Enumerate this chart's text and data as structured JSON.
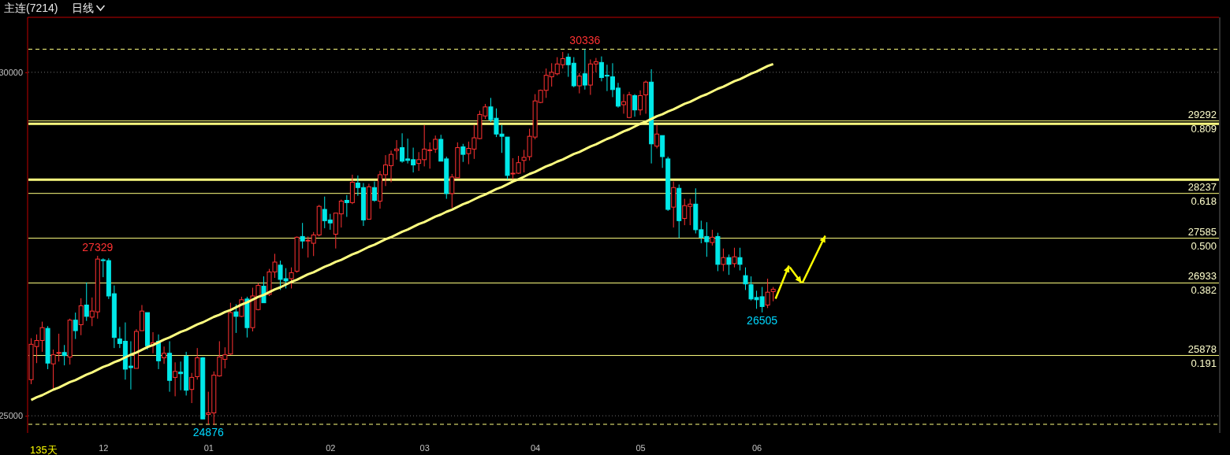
{
  "chart_data": {
    "type": "candlestick",
    "title": "主连(7214)",
    "subtitle": "日线",
    "categories": [
      null,
      null,
      null,
      null,
      null,
      null,
      null,
      null,
      null,
      null,
      null,
      null,
      null,
      "12",
      null,
      null,
      null,
      null,
      null,
      null,
      null,
      null,
      null,
      null,
      null,
      null,
      null,
      null,
      null,
      null,
      null,
      null,
      "01",
      null,
      null,
      null,
      null,
      null,
      null,
      null,
      null,
      null,
      null,
      null,
      null,
      null,
      null,
      null,
      null,
      null,
      null,
      null,
      null,
      null,
      "02",
      null,
      null,
      null,
      null,
      null,
      null,
      null,
      null,
      null,
      null,
      null,
      null,
      null,
      null,
      null,
      null,
      "03",
      null,
      null,
      null,
      null,
      null,
      null,
      null,
      null,
      null,
      null,
      null,
      null,
      null,
      null,
      null,
      null,
      null,
      null,
      null,
      "04",
      null,
      null,
      null,
      null,
      null,
      null,
      null,
      null,
      null,
      null,
      null,
      null,
      null,
      null,
      null,
      null,
      null,
      null,
      "05",
      null,
      null,
      null,
      null,
      null,
      null,
      null,
      null,
      null,
      null,
      null,
      null,
      null,
      null,
      null,
      null,
      null,
      null,
      null,
      null,
      "06",
      null,
      null,
      null
    ],
    "ohlc": [
      [
        25526,
        26129,
        25460,
        26041
      ],
      [
        26008,
        26184,
        25767,
        26096
      ],
      [
        26096,
        26370,
        25931,
        26283
      ],
      [
        26272,
        26305,
        25679,
        25767
      ],
      [
        25756,
        25964,
        25394,
        25888
      ],
      [
        25910,
        26195,
        25789,
        25921
      ],
      [
        25921,
        26030,
        25734,
        25877
      ],
      [
        25855,
        26414,
        25745,
        26392
      ],
      [
        26392,
        26502,
        26118,
        26239
      ],
      [
        26326,
        26711,
        26173,
        26601
      ],
      [
        26612,
        26941,
        26381,
        26447
      ],
      [
        26436,
        26722,
        26305,
        26524
      ],
      [
        26513,
        27329,
        26414,
        27281
      ],
      [
        27270,
        27292,
        27018,
        27259
      ],
      [
        27259,
        27292,
        26700,
        26744
      ],
      [
        26777,
        26897,
        25986,
        26140
      ],
      [
        26118,
        26294,
        25986,
        26052
      ],
      [
        26085,
        26359,
        25526,
        25679
      ],
      [
        25723,
        26085,
        25383,
        25701
      ],
      [
        25690,
        26261,
        25690,
        26228
      ],
      [
        26239,
        26612,
        26239,
        26524
      ],
      [
        26502,
        26502,
        25964,
        26019
      ],
      [
        26030,
        26217,
        25910,
        26063
      ],
      [
        26085,
        26184,
        25679,
        25800
      ],
      [
        25844,
        26008,
        25756,
        25910
      ],
      [
        25910,
        26085,
        25350,
        25515
      ],
      [
        25559,
        25778,
        25284,
        25646
      ],
      [
        25635,
        25789,
        25372,
        25613
      ],
      [
        25866,
        25931,
        25295,
        25372
      ],
      [
        25383,
        25624,
        25185,
        25559
      ],
      [
        25570,
        25986,
        25526,
        25844
      ],
      [
        25844,
        25855,
        24954,
        24954
      ],
      [
        25020,
        25350,
        24876,
        25042
      ],
      [
        25042,
        25646,
        24866,
        25591
      ],
      [
        25580,
        26085,
        25570,
        25855
      ],
      [
        25822,
        25997,
        25690,
        25888
      ],
      [
        25899,
        26645,
        25888,
        26502
      ],
      [
        26513,
        26623,
        26206,
        26447
      ],
      [
        26447,
        26733,
        26436,
        26689
      ],
      [
        26700,
        26733,
        26140,
        26283
      ],
      [
        26283,
        26864,
        26228,
        26744
      ],
      [
        26546,
        26930,
        26535,
        26897
      ],
      [
        26886,
        27029,
        26645,
        26645
      ],
      [
        26766,
        27138,
        26744,
        27094
      ],
      [
        27094,
        27358,
        27007,
        27237
      ],
      [
        27193,
        27259,
        26831,
        26985
      ],
      [
        26996,
        27149,
        26853,
        26963
      ],
      [
        26996,
        27160,
        26853,
        27083
      ],
      [
        27105,
        27610,
        27083,
        27599
      ],
      [
        27610,
        27807,
        27435,
        27544
      ],
      [
        27544,
        27610,
        27303,
        27555
      ],
      [
        27511,
        27675,
        27325,
        27632
      ],
      [
        27632,
        28070,
        27610,
        28048
      ],
      [
        28004,
        28191,
        27730,
        27840
      ],
      [
        27851,
        27939,
        27708,
        27807
      ],
      [
        27643,
        27950,
        27435,
        27950
      ],
      [
        27939,
        28147,
        27741,
        28125
      ],
      [
        28136,
        28213,
        27895,
        28103
      ],
      [
        28103,
        28509,
        28081,
        28399
      ],
      [
        28388,
        28498,
        28202,
        28322
      ],
      [
        28322,
        28388,
        27763,
        27851
      ],
      [
        27862,
        28377,
        27862,
        28333
      ],
      [
        28322,
        28410,
        28114,
        28136
      ],
      [
        28125,
        28564,
        28015,
        28509
      ],
      [
        28509,
        28794,
        28344,
        28651
      ],
      [
        28641,
        28860,
        28399,
        28805
      ],
      [
        28860,
        29013,
        28728,
        28882
      ],
      [
        28903,
        29112,
        28684,
        28706
      ],
      [
        28739,
        29035,
        28673,
        28717
      ],
      [
        28728,
        28903,
        28542,
        28651
      ],
      [
        28673,
        28838,
        28564,
        28728
      ],
      [
        28728,
        29232,
        28630,
        28882
      ],
      [
        28860,
        28980,
        28597,
        28871
      ],
      [
        28882,
        29079,
        28827,
        29024
      ],
      [
        29024,
        29090,
        28706,
        28706
      ],
      [
        28739,
        28772,
        28158,
        28235
      ],
      [
        28235,
        28520,
        28026,
        28476
      ],
      [
        28465,
        28980,
        28465,
        28903
      ],
      [
        28914,
        28958,
        28695,
        28805
      ],
      [
        28816,
        28991,
        28662,
        28892
      ],
      [
        28882,
        29232,
        28739,
        29046
      ],
      [
        29035,
        29441,
        29024,
        29386
      ],
      [
        29364,
        29539,
        29320,
        29496
      ],
      [
        29496,
        29627,
        29276,
        29309
      ],
      [
        29331,
        29474,
        29057,
        29101
      ],
      [
        29101,
        29232,
        28827,
        29068
      ],
      [
        29057,
        29057,
        28443,
        28498
      ],
      [
        28520,
        28750,
        28443,
        28531
      ],
      [
        28531,
        28783,
        28520,
        28684
      ],
      [
        28717,
        28871,
        28542,
        28761
      ],
      [
        28772,
        29178,
        28717,
        29068
      ],
      [
        29057,
        29682,
        29024,
        29583
      ],
      [
        29561,
        29748,
        29550,
        29737
      ],
      [
        29737,
        30055,
        29627,
        29956
      ],
      [
        29934,
        30132,
        29792,
        30000
      ],
      [
        29978,
        30220,
        29956,
        30121
      ],
      [
        30110,
        30296,
        30055,
        30198
      ],
      [
        30220,
        30274,
        29934,
        30110
      ],
      [
        30132,
        30220,
        29781,
        29803
      ],
      [
        29803,
        29989,
        29693,
        29945
      ],
      [
        29978,
        30336,
        29748,
        29814
      ],
      [
        29814,
        30187,
        29671,
        30121
      ],
      [
        30121,
        30209,
        30000,
        30154
      ],
      [
        30143,
        30231,
        29868,
        29923
      ],
      [
        29956,
        30110,
        29726,
        29945
      ],
      [
        29934,
        30132,
        29638,
        29748
      ],
      [
        29770,
        29846,
        29485,
        29507
      ],
      [
        29528,
        29682,
        29397,
        29572
      ],
      [
        29342,
        29715,
        29331,
        29671
      ],
      [
        29660,
        29682,
        29353,
        29452
      ],
      [
        29452,
        29737,
        29375,
        29660
      ],
      [
        29671,
        29879,
        29397,
        29857
      ],
      [
        29857,
        30044,
        28673,
        28958
      ],
      [
        28925,
        29232,
        28892,
        29101
      ],
      [
        29079,
        29079,
        28608,
        28772
      ],
      [
        28739,
        28772,
        27982,
        28004
      ],
      [
        28037,
        28410,
        27741,
        28322
      ],
      [
        28311,
        28366,
        27588,
        27840
      ],
      [
        27873,
        28158,
        27774,
        28059
      ],
      [
        28048,
        28158,
        27774,
        28081
      ],
      [
        28081,
        28311,
        27654,
        27708
      ],
      [
        27708,
        27840,
        27511,
        27599
      ],
      [
        27610,
        27818,
        27314,
        27533
      ],
      [
        27522,
        27708,
        27478,
        27599
      ],
      [
        27610,
        27664,
        27105,
        27204
      ],
      [
        27204,
        27435,
        27105,
        27303
      ],
      [
        27303,
        27347,
        27051,
        27204
      ],
      [
        27215,
        27446,
        27160,
        27314
      ],
      [
        27303,
        27446,
        27116,
        27204
      ],
      [
        27040,
        27160,
        26831,
        26919
      ],
      [
        26908,
        27029,
        26678,
        26700
      ],
      [
        26722,
        26820,
        26557,
        26689
      ],
      [
        26733,
        26875,
        26505,
        26590
      ],
      [
        26612,
        26996,
        26568,
        26799
      ],
      [
        26809,
        26875,
        26667,
        26842
      ]
    ],
    "series": [
      {
        "type": "line",
        "color": "#ffff80",
        "values": [
          25230,
          25270,
          25300,
          25340,
          25380,
          25410,
          25450,
          25490,
          25520,
          25560,
          25600,
          25630,
          25670,
          25710,
          25740,
          25780,
          25810,
          25850,
          25890,
          25920,
          25960,
          26000,
          26030,
          26070,
          26110,
          26140,
          26180,
          26220,
          26250,
          26290,
          26330,
          26360,
          26400,
          26440,
          26470,
          26510,
          26540,
          26580,
          26620,
          26650,
          26690,
          26730,
          26760,
          26800,
          26840,
          26870,
          26910,
          26950,
          26980,
          27020,
          27060,
          27090,
          27130,
          27170,
          27200,
          27240,
          27270,
          27310,
          27350,
          27380,
          27420,
          27460,
          27490,
          27530,
          27570,
          27600,
          27640,
          27680,
          27710,
          27750,
          27790,
          27820,
          27860,
          27900,
          27930,
          27970,
          28000,
          28040,
          28080,
          28110,
          28150,
          28190,
          28220,
          28260,
          28300,
          28330,
          28370,
          28410,
          28440,
          28480,
          28520,
          28550,
          28590,
          28630,
          28660,
          28700,
          28730,
          28770,
          28810,
          28840,
          28880,
          28920,
          28950,
          28990,
          29030,
          29060,
          29100,
          29140,
          29170,
          29210,
          29250,
          29280,
          29320,
          29360,
          29390,
          29430,
          29460,
          29500,
          29540,
          29570,
          29610,
          29650,
          29680,
          29720,
          29760,
          29790,
          29830,
          29870,
          29900,
          29940,
          29980,
          30010,
          30050,
          30090,
          30120
        ]
      }
    ],
    "ylim": [
      24750,
      30800
    ],
    "yticks": [
      25000,
      30000
    ],
    "grid": "y",
    "ref_lines": [
      {
        "axis": "y",
        "value": 30336,
        "line_style": "dashed",
        "color": "#ffff80"
      },
      {
        "axis": "y",
        "value": 29292,
        "label": "29292",
        "color": "#ffff80"
      },
      {
        "axis": "y",
        "value": 29250,
        "color": "#ffff80"
      },
      {
        "axis": "y",
        "value": 28438,
        "color": "#ffff80"
      },
      {
        "axis": "y",
        "value": 28237,
        "label": "28237",
        "color": "#ffff80"
      },
      {
        "axis": "y",
        "value": 27585,
        "label": "27585",
        "color": "#ffff80"
      },
      {
        "axis": "y",
        "value": 26933,
        "label": "26933",
        "color": "#ffff80"
      },
      {
        "axis": "y",
        "value": 25878,
        "label": "25878",
        "color": "#ffff80"
      },
      {
        "axis": "y",
        "value": 24876,
        "line_style": "dashed",
        "color": "#ffff80"
      }
    ],
    "annotations": [
      {
        "text": "30336",
        "y": 30336
      },
      {
        "text": "27329",
        "y": 27329
      },
      {
        "text": "26505",
        "y": 26505
      },
      {
        "text": "24876",
        "y": 24876
      },
      {
        "text": "0.809",
        "y": 29292
      },
      {
        "text": "0.618",
        "y": 28237
      },
      {
        "text": "0.500",
        "y": 27585
      },
      {
        "text": "0.382",
        "y": 26933
      },
      {
        "text": "0.191",
        "y": 25878
      },
      "135天"
    ]
  }
}
